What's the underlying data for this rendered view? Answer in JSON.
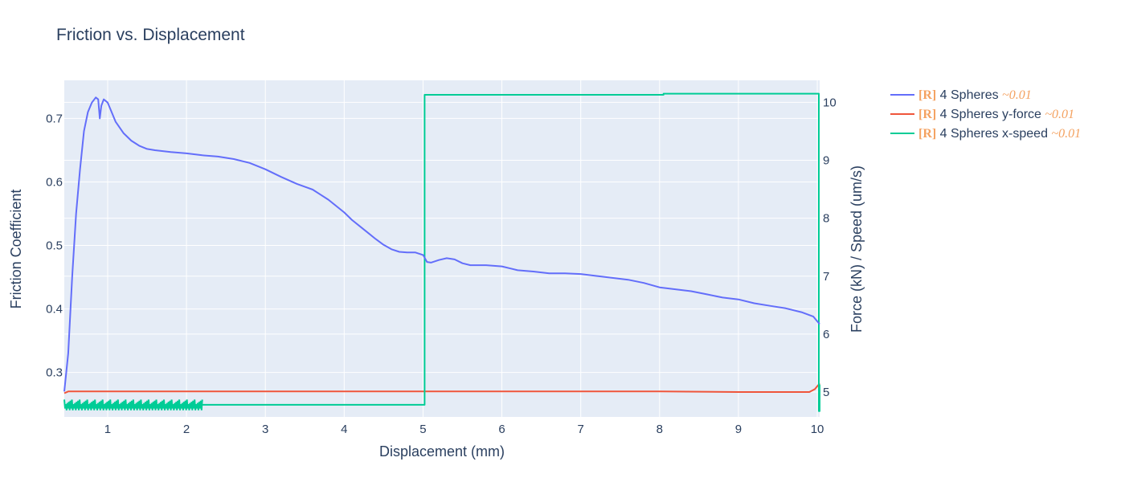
{
  "chart_data": {
    "type": "line",
    "title": "Friction vs. Displacement",
    "xlabel": "Displacement (mm)",
    "ylabel": "Friction Coefficient",
    "y2label": "Force (kN) / Speed (um/s)",
    "xlim": [
      0.45,
      10.03
    ],
    "ylim": [
      0.23,
      0.76
    ],
    "y2lim": [
      4.57,
      10.38
    ],
    "x_ticks": [
      1,
      2,
      3,
      4,
      5,
      6,
      7,
      8,
      9,
      10
    ],
    "y_ticks": [
      0.3,
      0.4,
      0.5,
      0.6,
      0.7
    ],
    "y2_ticks": [
      5,
      6,
      7,
      8,
      9,
      10
    ],
    "grid": true,
    "legend_position": "top-right, outside plot",
    "series": [
      {
        "name": "4 Spheres",
        "tag": "[R]",
        "approx": "~0.01",
        "axis": "y",
        "color": "#636efa",
        "x": [
          0.45,
          0.5,
          0.55,
          0.6,
          0.65,
          0.7,
          0.75,
          0.8,
          0.85,
          0.88,
          0.9,
          0.92,
          0.95,
          1.0,
          1.05,
          1.1,
          1.2,
          1.3,
          1.4,
          1.5,
          1.6,
          1.8,
          2.0,
          2.2,
          2.4,
          2.6,
          2.8,
          3.0,
          3.2,
          3.4,
          3.6,
          3.7,
          3.8,
          3.9,
          4.0,
          4.1,
          4.2,
          4.3,
          4.4,
          4.5,
          4.6,
          4.7,
          4.8,
          4.9,
          5.0,
          5.05,
          5.1,
          5.2,
          5.3,
          5.4,
          5.5,
          5.6,
          5.8,
          6.0,
          6.2,
          6.4,
          6.6,
          6.8,
          7.0,
          7.2,
          7.4,
          7.6,
          7.8,
          8.0,
          8.2,
          8.4,
          8.6,
          8.8,
          9.0,
          9.2,
          9.4,
          9.6,
          9.8,
          9.95,
          10.03
        ],
        "y": [
          0.27,
          0.33,
          0.45,
          0.55,
          0.62,
          0.68,
          0.71,
          0.725,
          0.733,
          0.73,
          0.7,
          0.72,
          0.73,
          0.725,
          0.71,
          0.695,
          0.677,
          0.665,
          0.657,
          0.652,
          0.65,
          0.647,
          0.645,
          0.642,
          0.64,
          0.636,
          0.63,
          0.62,
          0.608,
          0.597,
          0.588,
          0.58,
          0.572,
          0.562,
          0.552,
          0.54,
          0.53,
          0.52,
          0.51,
          0.501,
          0.494,
          0.49,
          0.489,
          0.489,
          0.485,
          0.474,
          0.473,
          0.477,
          0.48,
          0.478,
          0.472,
          0.469,
          0.469,
          0.467,
          0.461,
          0.459,
          0.456,
          0.456,
          0.455,
          0.452,
          0.449,
          0.446,
          0.441,
          0.434,
          0.431,
          0.428,
          0.423,
          0.418,
          0.415,
          0.409,
          0.405,
          0.401,
          0.395,
          0.388,
          0.376
        ]
      },
      {
        "name": "4 Spheres y-force",
        "tag": "[R]",
        "approx": "~0.01",
        "axis": "y2",
        "color": "#ef553b",
        "x": [
          0.45,
          0.5,
          1.0,
          2.0,
          3.0,
          4.0,
          5.0,
          6.0,
          7.0,
          8.0,
          9.0,
          9.9,
          9.97,
          10.03
        ],
        "y": [
          4.98,
          5.01,
          5.01,
          5.01,
          5.01,
          5.01,
          5.01,
          5.01,
          5.01,
          5.01,
          5.0,
          5.0,
          5.05,
          5.15
        ]
      },
      {
        "name": "4 Spheres x-speed",
        "tag": "[R]",
        "approx": "~0.01",
        "axis": "y2",
        "color": "#00cc96",
        "x": [
          2.2,
          5.02,
          5.02,
          8.05,
          8.05,
          10.02,
          10.02,
          10.03,
          10.03
        ],
        "y": [
          4.78,
          4.78,
          10.13,
          10.13,
          10.15,
          10.15,
          4.67,
          4.67,
          5.13
        ],
        "noise_band": {
          "x_start": 0.45,
          "x_end": 2.2,
          "y_low": 4.67,
          "y_high": 4.87
        }
      }
    ]
  }
}
